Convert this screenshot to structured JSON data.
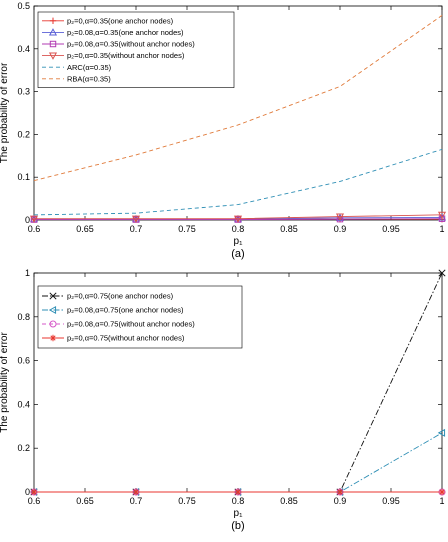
{
  "chart_data": [
    {
      "type": "line",
      "caption": "(a)",
      "xlabel": "p₁",
      "ylabel": "The probability of error",
      "xlim": [
        0.6,
        1
      ],
      "ylim": [
        0,
        0.5
      ],
      "xticks": [
        0.6,
        0.65,
        0.7,
        0.75,
        0.8,
        0.85,
        0.9,
        0.95,
        1
      ],
      "yticks": [
        0,
        0.1,
        0.2,
        0.3,
        0.4,
        0.5
      ],
      "legend_position": "top-left",
      "grid": false,
      "series": [
        {
          "name": "p₂=0,α=0.35(one anchor nodes)",
          "color": "#e8362f",
          "dash": "solid",
          "marker": "plus",
          "x": [
            0.6,
            0.7,
            0.8,
            0.9,
            1.0
          ],
          "y": [
            0.002,
            0.002,
            0.002,
            0.002,
            0.002
          ]
        },
        {
          "name": "p₂=0.08,α=0.35(one anchor nodes)",
          "color": "#5a5fd6",
          "dash": "solid",
          "marker": "triangle-up",
          "x": [
            0.6,
            0.7,
            0.8,
            0.9,
            1.0
          ],
          "y": [
            0.002,
            0.002,
            0.002,
            0.005,
            0.006
          ]
        },
        {
          "name": "p₂=0.08,α=0.35(without anchor nodes)",
          "color": "#b23bb3",
          "dash": "solid",
          "marker": "square",
          "x": [
            0.6,
            0.7,
            0.8,
            0.9,
            1.0
          ],
          "y": [
            0.001,
            0.001,
            0.001,
            0.002,
            0.003
          ]
        },
        {
          "name": "p₂=0,α=0.35(without anchor nodes)",
          "color": "#d9534f",
          "dash": "solid",
          "marker": "triangle-down",
          "x": [
            0.6,
            0.7,
            0.8,
            0.9,
            1.0
          ],
          "y": [
            0.003,
            0.003,
            0.003,
            0.008,
            0.012
          ]
        },
        {
          "name": "ARC(α=0.35)",
          "color": "#2f8fb5",
          "dash": "dash",
          "marker": "none",
          "x": [
            0.6,
            0.7,
            0.8,
            0.9,
            1.0
          ],
          "y": [
            0.012,
            0.016,
            0.036,
            0.09,
            0.165
          ]
        },
        {
          "name": "RBA(α=0.35)",
          "color": "#e07a3a",
          "dash": "dash",
          "marker": "none",
          "x": [
            0.6,
            0.7,
            0.8,
            0.9,
            1.0
          ],
          "y": [
            0.092,
            0.152,
            0.222,
            0.312,
            0.478
          ]
        }
      ]
    },
    {
      "type": "line",
      "caption": "(b)",
      "xlabel": "p₁",
      "ylabel": "The probability of error",
      "xlim": [
        0.6,
        1
      ],
      "ylim": [
        0,
        1
      ],
      "xticks": [
        0.6,
        0.65,
        0.7,
        0.75,
        0.8,
        0.85,
        0.9,
        0.95,
        1
      ],
      "yticks": [
        0,
        0.2,
        0.4,
        0.6,
        0.8,
        1
      ],
      "legend_position": "top-left",
      "grid": false,
      "series": [
        {
          "name": "p₂=0,α=0.75(one anchor nodes)",
          "color": "#111111",
          "dash": "dashdot",
          "marker": "cross",
          "x": [
            0.6,
            0.7,
            0.8,
            0.9,
            1.0
          ],
          "y": [
            0,
            0,
            0,
            0,
            1.0
          ]
        },
        {
          "name": "p₂=0.08,α=0.75(one anchor nodes)",
          "color": "#2f8fb5",
          "dash": "dashdot",
          "marker": "triangle-left",
          "x": [
            0.6,
            0.7,
            0.8,
            0.9,
            1.0
          ],
          "y": [
            0,
            0,
            0,
            0,
            0.27
          ]
        },
        {
          "name": "p₂=0.08,α=0.75(without anchor nodes)",
          "color": "#d657c8",
          "dash": "dash",
          "marker": "circle",
          "x": [
            0.6,
            0.7,
            0.8,
            0.9,
            1.0
          ],
          "y": [
            0,
            0,
            0,
            0,
            0
          ]
        },
        {
          "name": "p₂=0,α=0.75(without anchor nodes)",
          "color": "#e8362f",
          "dash": "solid",
          "marker": "star",
          "x": [
            0.6,
            0.7,
            0.8,
            0.9,
            1.0
          ],
          "y": [
            0,
            0,
            0,
            0,
            0
          ]
        }
      ]
    }
  ]
}
